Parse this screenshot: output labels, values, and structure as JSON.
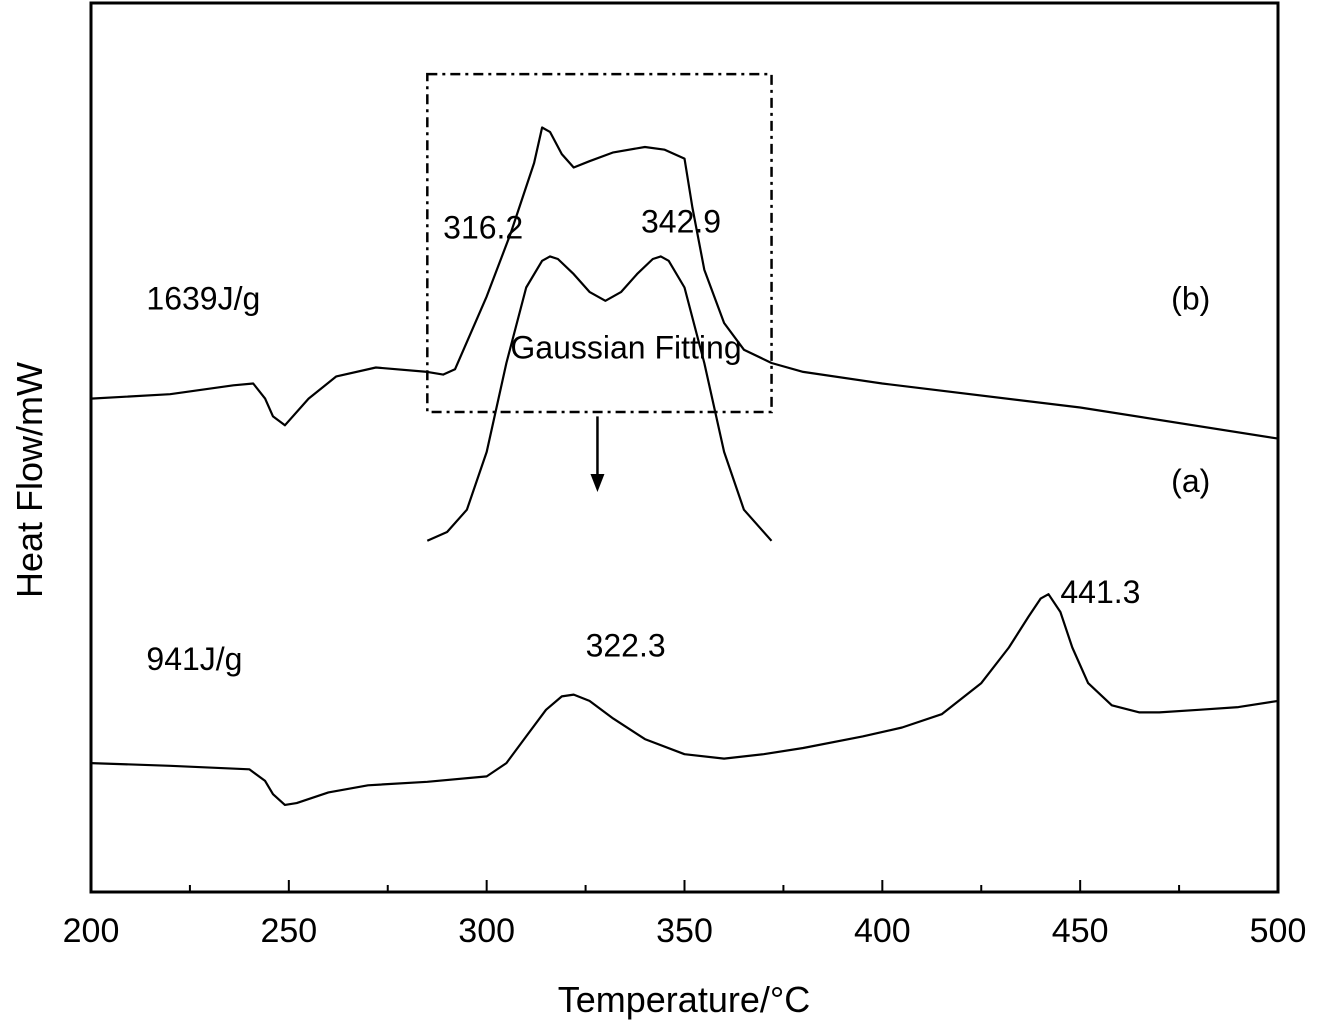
{
  "chart_data": {
    "type": "line",
    "xlabel": "Temperature/°C",
    "ylabel": "Heat Flow/mW",
    "xlim": [
      200,
      500
    ],
    "x_ticks": [
      "200",
      "250",
      "300",
      "350",
      "400",
      "450",
      "500"
    ],
    "y_ticks_shown": false,
    "legend": "none",
    "grid": false,
    "colors": {
      "line": "#000000",
      "axis": "#000000",
      "background": "#ffffff"
    },
    "series": [
      {
        "label": "(b)",
        "enthalpy_label": "1639J/g",
        "x": [
          200,
          220,
          236,
          241,
          244,
          246,
          249,
          255,
          262,
          272,
          285,
          289,
          292,
          300,
          306,
          312,
          314,
          316,
          319,
          322,
          326,
          332,
          340,
          345,
          350,
          352,
          355,
          360,
          365,
          372,
          380,
          400,
          450,
          500
        ],
        "y": [
          5.55,
          5.6,
          5.7,
          5.72,
          5.55,
          5.35,
          5.25,
          5.55,
          5.8,
          5.9,
          5.85,
          5.82,
          5.88,
          6.7,
          7.4,
          8.2,
          8.6,
          8.55,
          8.3,
          8.15,
          8.22,
          8.32,
          8.38,
          8.35,
          8.25,
          7.7,
          7.0,
          6.4,
          6.1,
          5.95,
          5.85,
          5.72,
          5.45,
          5.1
        ]
      },
      {
        "label": "(a)",
        "enthalpy_label": "941J/g",
        "x": [
          200,
          220,
          240,
          244,
          246,
          249,
          252,
          260,
          270,
          285,
          300,
          305,
          310,
          315,
          319,
          322,
          326,
          332,
          340,
          350,
          360,
          370,
          380,
          395,
          405,
          415,
          425,
          432,
          437,
          440,
          442,
          445,
          448,
          452,
          458,
          465,
          470,
          480,
          490,
          500
        ],
        "y": [
          1.45,
          1.42,
          1.38,
          1.25,
          1.1,
          0.98,
          1.0,
          1.12,
          1.2,
          1.24,
          1.3,
          1.45,
          1.75,
          2.05,
          2.2,
          2.22,
          2.15,
          1.95,
          1.72,
          1.55,
          1.5,
          1.55,
          1.62,
          1.75,
          1.85,
          2.0,
          2.35,
          2.75,
          3.1,
          3.3,
          3.35,
          3.15,
          2.75,
          2.35,
          2.1,
          2.02,
          2.02,
          2.05,
          2.08,
          2.15
        ]
      }
    ],
    "inset": {
      "label": "Gaussian Fitting",
      "box_x": [
        285,
        372
      ],
      "box_y": [
        5.4,
        9.2
      ],
      "fit_x": [
        285,
        290,
        295,
        300,
        305,
        310,
        314,
        316,
        318,
        322,
        326,
        330,
        334,
        338,
        342,
        344,
        346,
        350,
        355,
        360,
        365,
        372
      ],
      "fit_y": [
        3.95,
        4.05,
        4.3,
        4.95,
        5.95,
        6.8,
        7.1,
        7.15,
        7.12,
        6.95,
        6.75,
        6.65,
        6.75,
        6.95,
        7.12,
        7.15,
        7.1,
        6.8,
        5.95,
        4.95,
        4.3,
        3.95
      ],
      "arrow_x": 328,
      "arrow_y": [
        5.35,
        4.5
      ],
      "peaks": [
        {
          "label": "316.2",
          "x": 316.2
        },
        {
          "label": "342.9",
          "x": 342.9
        }
      ]
    },
    "annotations": [
      {
        "text": "1639J/g",
        "x": 214,
        "y": 6.55
      },
      {
        "text": "(b)",
        "x": 473,
        "y": 6.55
      },
      {
        "text": "316.2",
        "x": 289,
        "y": 7.35
      },
      {
        "text": "342.9",
        "x": 339,
        "y": 7.42
      },
      {
        "text": "(a)",
        "x": 473,
        "y": 4.5
      },
      {
        "text": "441.3",
        "x": 445,
        "y": 3.25
      },
      {
        "text": "941J/g",
        "x": 214,
        "y": 2.5
      },
      {
        "text": "322.3",
        "x": 325,
        "y": 2.65
      },
      {
        "text": "Gaussian Fitting",
        "x": 306,
        "y": 6.0
      }
    ]
  }
}
